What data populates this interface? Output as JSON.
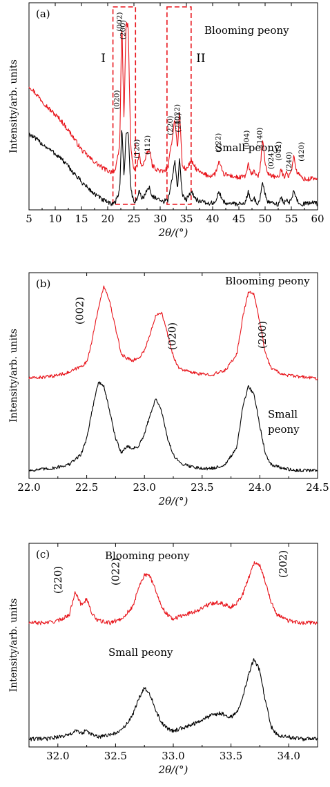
{
  "chart_data": [
    {
      "type": "line",
      "panel_label": "(a)",
      "xlabel": "2θ/(°)",
      "ylabel": "Intensity/arb. units",
      "xlim": [
        5,
        60
      ],
      "xticks": [
        "5",
        "10",
        "15",
        "20",
        "25",
        "30",
        "35",
        "40",
        "45",
        "50",
        "55",
        "60"
      ],
      "xtick_values": [
        5,
        10,
        15,
        20,
        25,
        30,
        35,
        40,
        45,
        50,
        55,
        60
      ],
      "y_ticks_shown": false,
      "grid": false,
      "series": [
        {
          "name": "Blooming peony",
          "color": "#e8141b",
          "x": [
            5,
            7,
            9,
            11,
            13,
            15,
            17,
            19,
            20.5,
            21.5,
            22.3,
            22.7,
            23.1,
            23.5,
            23.9,
            24.4,
            25,
            25.6,
            26,
            26.4,
            27,
            27.5,
            28,
            28.5,
            29.5,
            30.5,
            31.5,
            32.3,
            32.8,
            33.3,
            33.7,
            34.2,
            35,
            35.5,
            36,
            37,
            38,
            39.5,
            40.5,
            41.2,
            42,
            43.5,
            45,
            46.3,
            46.8,
            47.3,
            47.9,
            48.5,
            49,
            49.5,
            50,
            50.5,
            51.5,
            52.5,
            53.1,
            53.6,
            54.1,
            54.5,
            55,
            55.5,
            56,
            57,
            58,
            59,
            60
          ],
          "y": [
            0.62,
            0.56,
            0.5,
            0.45,
            0.38,
            0.3,
            0.25,
            0.21,
            0.19,
            0.2,
            0.32,
            0.96,
            0.45,
            0.93,
            0.92,
            0.3,
            0.2,
            0.22,
            0.28,
            0.22,
            0.24,
            0.28,
            0.3,
            0.22,
            0.2,
            0.19,
            0.21,
            0.36,
            0.46,
            0.3,
            0.5,
            0.22,
            0.2,
            0.23,
            0.24,
            0.2,
            0.18,
            0.17,
            0.18,
            0.24,
            0.18,
            0.17,
            0.16,
            0.17,
            0.23,
            0.17,
            0.2,
            0.16,
            0.19,
            0.35,
            0.24,
            0.18,
            0.17,
            0.16,
            0.2,
            0.16,
            0.2,
            0.16,
            0.2,
            0.27,
            0.19,
            0.16,
            0.15,
            0.16,
            0.15
          ]
        },
        {
          "name": "Small peony",
          "color": "#000000",
          "x": [
            5,
            7,
            9,
            11,
            13,
            15,
            17,
            19,
            20.5,
            21.5,
            22.3,
            22.7,
            23.1,
            23.5,
            23.9,
            24.4,
            25,
            25.6,
            26,
            26.4,
            27,
            27.5,
            28,
            28.5,
            29.5,
            30.5,
            31.5,
            32.3,
            32.8,
            33.3,
            33.7,
            34.2,
            35,
            35.5,
            36,
            37,
            38,
            39.5,
            40.5,
            41.2,
            42,
            43.5,
            45,
            46.3,
            46.8,
            47.3,
            47.9,
            48.5,
            49,
            49.5,
            50,
            50.5,
            51.5,
            52.5,
            53.1,
            53.6,
            54.1,
            54.5,
            55,
            55.5,
            56,
            57,
            58,
            59,
            60
          ],
          "y": [
            0.38,
            0.34,
            0.3,
            0.26,
            0.2,
            0.14,
            0.09,
            0.05,
            0.03,
            0.04,
            0.1,
            0.43,
            0.16,
            0.38,
            0.4,
            0.1,
            0.04,
            0.05,
            0.1,
            0.06,
            0.07,
            0.1,
            0.11,
            0.07,
            0.05,
            0.04,
            0.05,
            0.16,
            0.24,
            0.11,
            0.26,
            0.07,
            0.05,
            0.08,
            0.09,
            0.05,
            0.04,
            0.03,
            0.04,
            0.09,
            0.04,
            0.03,
            0.03,
            0.04,
            0.09,
            0.04,
            0.06,
            0.03,
            0.05,
            0.14,
            0.08,
            0.04,
            0.03,
            0.03,
            0.06,
            0.03,
            0.06,
            0.03,
            0.05,
            0.1,
            0.05,
            0.03,
            0.03,
            0.04,
            0.03
          ]
        }
      ],
      "series_labels": [
        "Blooming peony",
        "Small peony"
      ],
      "peak_labels": [
        {
          "text": "(002)",
          "x": 22.7
        },
        {
          "text": "(020)",
          "x": 23.2
        },
        {
          "text": "(200)",
          "x": 23.9
        },
        {
          "text": "(120)",
          "x": 26.0
        },
        {
          "text": "(220)",
          "x": 32.4
        },
        {
          "text": "(022)",
          "x": 33.7
        },
        {
          "text": "(202)",
          "x": 33.9
        },
        {
          "text": "(112)",
          "x": 28.0
        },
        {
          "text": "(222)",
          "x": 41.5
        },
        {
          "text": "(004)",
          "x": 46.9
        },
        {
          "text": "(140)",
          "x": 49.4
        },
        {
          "text": "(024)",
          "x": 51.6
        },
        {
          "text": "(042)",
          "x": 53.0
        },
        {
          "text": "(240)",
          "x": 55.0
        },
        {
          "text": "(420)",
          "x": 57.4
        }
      ],
      "regions": [
        {
          "label": "I",
          "x": [
            21.0,
            25.3
          ]
        },
        {
          "label": "II",
          "x": [
            31.3,
            35.9
          ]
        }
      ]
    },
    {
      "type": "line",
      "panel_label": "(b)",
      "xlabel": "2θ/(°)",
      "ylabel": "Intensity/arb. units",
      "xlim": [
        22.0,
        24.5
      ],
      "xticks": [
        "22.0",
        "22.5",
        "23.0",
        "23.5",
        "24.0",
        "24.5"
      ],
      "xtick_values": [
        22.0,
        22.5,
        23.0,
        23.5,
        24.0,
        24.5
      ],
      "y_ticks_shown": false,
      "grid": false,
      "series": [
        {
          "name": "Blooming peony",
          "color": "#e8141b",
          "x": [
            22.0,
            22.2,
            22.35,
            22.45,
            22.5,
            22.55,
            22.6,
            22.65,
            22.7,
            22.75,
            22.8,
            22.85,
            22.9,
            22.95,
            23.0,
            23.05,
            23.1,
            23.15,
            23.2,
            23.25,
            23.3,
            23.4,
            23.5,
            23.6,
            23.7,
            23.8,
            23.85,
            23.9,
            23.95,
            24.0,
            24.05,
            24.1,
            24.2,
            24.3,
            24.5
          ],
          "y": [
            0.5,
            0.51,
            0.53,
            0.56,
            0.58,
            0.7,
            0.85,
            0.96,
            0.88,
            0.75,
            0.62,
            0.6,
            0.59,
            0.6,
            0.64,
            0.72,
            0.82,
            0.83,
            0.72,
            0.61,
            0.55,
            0.53,
            0.52,
            0.52,
            0.54,
            0.62,
            0.8,
            0.93,
            0.92,
            0.78,
            0.62,
            0.55,
            0.52,
            0.51,
            0.5
          ]
        },
        {
          "name": "Small peony",
          "color": "#000000",
          "x": [
            22.0,
            22.2,
            22.35,
            22.45,
            22.5,
            22.55,
            22.6,
            22.65,
            22.7,
            22.75,
            22.8,
            22.85,
            22.9,
            22.95,
            23.0,
            23.05,
            23.1,
            23.15,
            23.2,
            23.25,
            23.3,
            23.4,
            23.5,
            23.6,
            23.7,
            23.8,
            23.85,
            23.9,
            23.95,
            24.0,
            24.05,
            24.1,
            24.2,
            24.3,
            24.5
          ],
          "y": [
            0.04,
            0.05,
            0.07,
            0.12,
            0.2,
            0.35,
            0.48,
            0.46,
            0.33,
            0.2,
            0.13,
            0.16,
            0.15,
            0.16,
            0.22,
            0.32,
            0.4,
            0.33,
            0.2,
            0.12,
            0.08,
            0.06,
            0.05,
            0.05,
            0.07,
            0.15,
            0.35,
            0.46,
            0.42,
            0.26,
            0.12,
            0.07,
            0.05,
            0.04,
            0.04
          ]
        }
      ],
      "series_labels": [
        "Blooming peony",
        "Small peony"
      ],
      "peak_labels": [
        {
          "text": "(002)",
          "x": 22.47
        },
        {
          "text": "(020)",
          "x": 23.27
        },
        {
          "text": "(200)",
          "x": 24.05
        }
      ]
    },
    {
      "type": "line",
      "panel_label": "(c)",
      "xlabel": "2θ/(°)",
      "ylabel": "Intensity/arb. units",
      "xlim": [
        31.75,
        34.25
      ],
      "xticks": [
        "32.0",
        "32.5",
        "33.0",
        "33.5",
        "34.0"
      ],
      "xtick_values": [
        32.0,
        32.5,
        33.0,
        33.5,
        34.0
      ],
      "y_ticks_shown": false,
      "grid": false,
      "series": [
        {
          "name": "Blooming peony",
          "color": "#e8141b",
          "x": [
            31.75,
            31.9,
            32.0,
            32.1,
            32.15,
            32.2,
            32.25,
            32.3,
            32.35,
            32.45,
            32.55,
            32.65,
            32.7,
            32.75,
            32.8,
            32.85,
            32.9,
            32.95,
            33.0,
            33.1,
            33.2,
            33.3,
            33.35,
            33.4,
            33.45,
            33.5,
            33.55,
            33.6,
            33.65,
            33.7,
            33.75,
            33.8,
            33.85,
            33.9,
            34.0,
            34.1,
            34.25
          ],
          "y": [
            0.62,
            0.62,
            0.63,
            0.66,
            0.78,
            0.71,
            0.74,
            0.66,
            0.63,
            0.62,
            0.64,
            0.7,
            0.8,
            0.86,
            0.85,
            0.78,
            0.7,
            0.66,
            0.64,
            0.66,
            0.68,
            0.71,
            0.72,
            0.72,
            0.71,
            0.7,
            0.72,
            0.76,
            0.84,
            0.92,
            0.91,
            0.82,
            0.72,
            0.66,
            0.63,
            0.62,
            0.62
          ]
        },
        {
          "name": "Small peony",
          "color": "#000000",
          "x": [
            31.75,
            31.9,
            32.0,
            32.1,
            32.15,
            32.2,
            32.25,
            32.3,
            32.35,
            32.45,
            32.55,
            32.65,
            32.7,
            32.75,
            32.8,
            32.85,
            32.9,
            32.95,
            33.0,
            33.1,
            33.2,
            33.3,
            33.35,
            33.4,
            33.45,
            33.5,
            33.55,
            33.6,
            33.65,
            33.7,
            33.75,
            33.8,
            33.85,
            33.9,
            34.0,
            34.1,
            34.25
          ],
          "y": [
            0.04,
            0.04,
            0.05,
            0.06,
            0.08,
            0.07,
            0.08,
            0.06,
            0.05,
            0.06,
            0.08,
            0.16,
            0.24,
            0.3,
            0.26,
            0.18,
            0.12,
            0.09,
            0.08,
            0.1,
            0.12,
            0.15,
            0.16,
            0.17,
            0.16,
            0.15,
            0.17,
            0.24,
            0.36,
            0.44,
            0.38,
            0.22,
            0.1,
            0.06,
            0.05,
            0.04,
            0.04
          ]
        }
      ],
      "series_labels": [
        "Blooming peony",
        "Small peony"
      ],
      "peak_labels": [
        {
          "text": "(220)",
          "x": 32.03
        },
        {
          "text": "(022)",
          "x": 32.53
        },
        {
          "text": "(202)",
          "x": 33.98
        }
      ]
    }
  ]
}
